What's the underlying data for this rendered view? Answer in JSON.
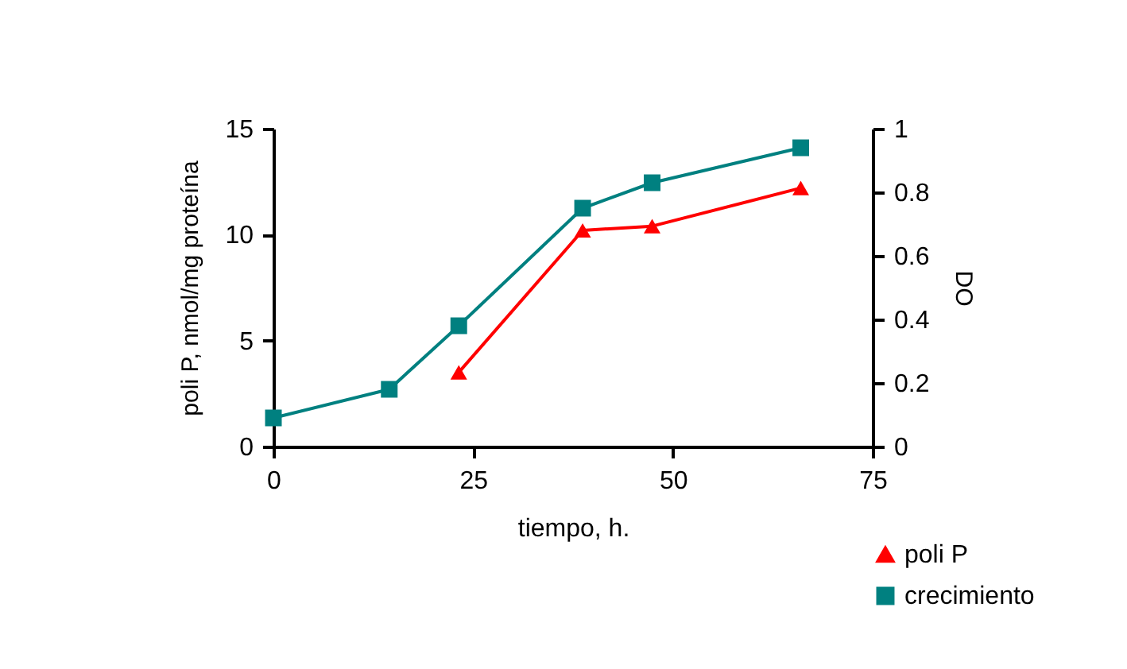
{
  "chart_data": {
    "type": "line",
    "xlabel": "tiempo, h.",
    "ylabel": "poli P, nmol/mg proteína",
    "y2label": "DO",
    "xlim": [
      0,
      75
    ],
    "xticks": [
      0,
      25,
      50,
      75
    ],
    "ylim": [
      0,
      15
    ],
    "yticks": [
      0,
      5,
      10,
      15
    ],
    "y2lim": [
      0,
      1
    ],
    "y2ticks": [
      0,
      0.2,
      0.4,
      0.6,
      {
        "value": 0.8,
        "label": "0.8"
      },
      1
    ],
    "legend": "bottom right",
    "grid": false,
    "series": [
      {
        "name": "poli P",
        "color": "#ff0000",
        "marker": "triangle",
        "x": [
          23.2,
          38.7,
          47.4,
          66
        ],
        "values": [
          3.5,
          10.2,
          10.4,
          12.2
        ]
      },
      {
        "name": "crecimiento",
        "color": "#008080",
        "marker": "square",
        "axis": "y2",
        "x": [
          0,
          14.5,
          23.2,
          38.7,
          47.4,
          66
        ],
        "values": [
          0.09,
          0.18,
          0.38,
          0.75,
          0.83,
          0.94
        ]
      }
    ]
  }
}
